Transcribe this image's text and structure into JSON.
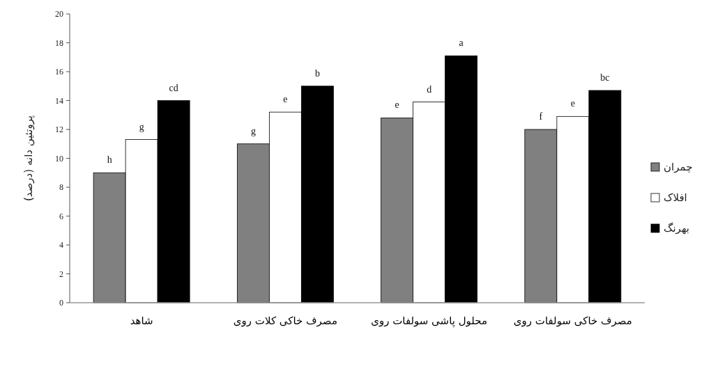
{
  "chart_data": {
    "type": "bar",
    "ylabel": "پروتئین دانه (درصد)",
    "categories": [
      "شاهد",
      "مصرف خاکی کلات روی",
      "محلول پاشی سولفات روی",
      "مصرف خاکی سولفات روی"
    ],
    "series": [
      {
        "name": "چمران",
        "color": "#808080",
        "values": [
          9.0,
          11.0,
          12.8,
          12.0
        ],
        "value_labels": [
          "h",
          "g",
          "e",
          "f"
        ]
      },
      {
        "name": "افلاک",
        "color": "#ffffff",
        "values": [
          11.3,
          13.2,
          13.9,
          12.9
        ],
        "value_labels": [
          "g",
          "e",
          "d",
          "e"
        ]
      },
      {
        "name": "بهرنگ",
        "color": "#000000",
        "values": [
          14.0,
          15.0,
          17.1,
          14.7
        ],
        "value_labels": [
          "cd",
          "b",
          "a",
          "bc"
        ]
      }
    ],
    "ylim": [
      0,
      20
    ],
    "yticks": [
      0,
      2,
      4,
      6,
      8,
      10,
      12,
      14,
      16,
      18,
      20
    ],
    "grid": false,
    "legend": "right"
  }
}
